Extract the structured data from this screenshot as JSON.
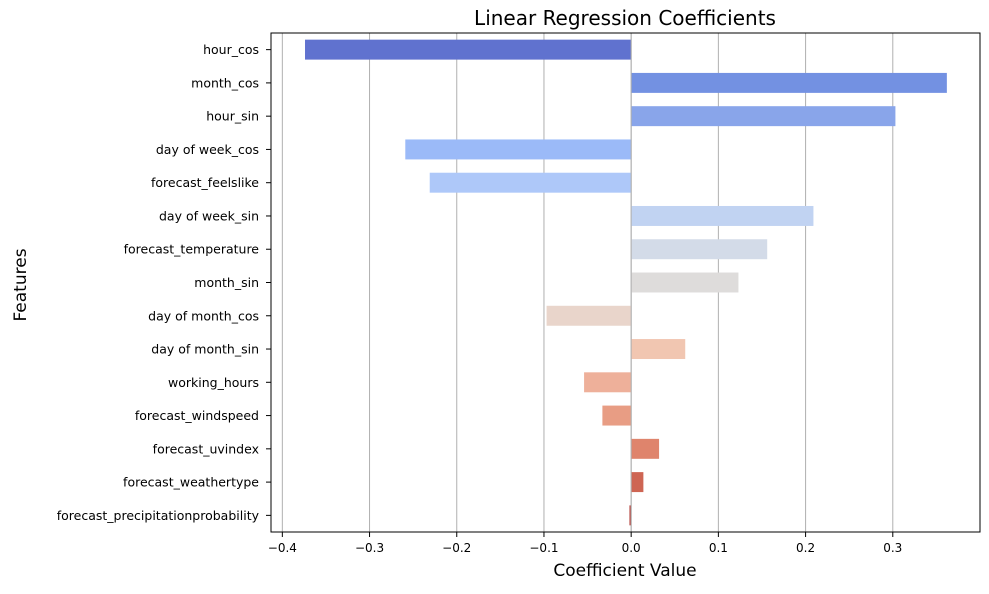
{
  "chart_data": {
    "type": "bar",
    "orientation": "horizontal",
    "title": "Linear Regression Coefficients",
    "xlabel": "Coefficient Value",
    "ylabel": "Features",
    "xlim": [
      -0.413,
      0.4
    ],
    "xticks": [
      -0.4,
      -0.3,
      -0.2,
      -0.1,
      0.0,
      0.1,
      0.2,
      0.3
    ],
    "xtick_labels": [
      "−0.4",
      "−0.3",
      "−0.2",
      "−0.1",
      "0.0",
      "0.1",
      "0.2",
      "0.3"
    ],
    "grid": "vertical",
    "palette": "coolwarm",
    "categories": [
      "hour_cos",
      "month_cos",
      "hour_sin",
      "day of week_cos",
      "forecast_feelslike",
      "day of week_sin",
      "forecast_temperature",
      "month_sin",
      "day of month_cos",
      "day of month_sin",
      "working_hours",
      "forecast_windspeed",
      "forecast_uvindex",
      "forecast_weathertype",
      "forecast_precipitationprobability"
    ],
    "values": [
      -0.374,
      0.362,
      0.303,
      -0.259,
      -0.231,
      0.209,
      0.156,
      0.123,
      -0.097,
      0.062,
      -0.054,
      -0.033,
      0.032,
      0.014,
      -0.002
    ],
    "colors": [
      "#6072cf",
      "#7391e2",
      "#89a5ea",
      "#9bbaf8",
      "#aec8f9",
      "#c1d3f2",
      "#d3dbe8",
      "#dedcdb",
      "#e9d5cb",
      "#f1c6b1",
      "#eeb09a",
      "#e89d84",
      "#df846c",
      "#ce6553",
      "#b84b45"
    ]
  }
}
